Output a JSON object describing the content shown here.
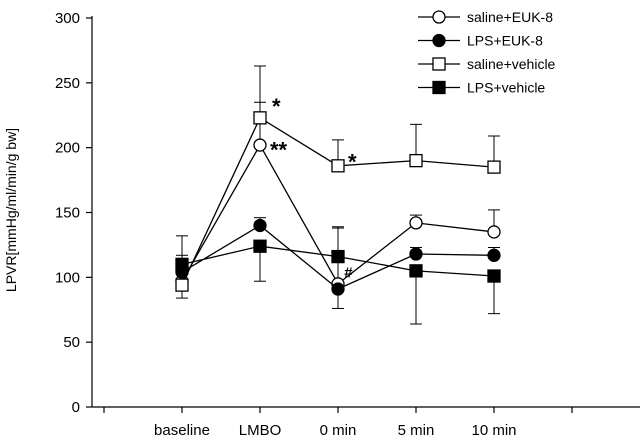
{
  "chart_data": {
    "type": "line",
    "title": "",
    "xlabel": "",
    "ylabel": "LPVR[mmHg/ml/min/g bw]",
    "ylim": [
      0,
      300
    ],
    "yticks": [
      0,
      50,
      100,
      150,
      200,
      250,
      300
    ],
    "categories": [
      "baseline",
      "LMBO",
      "0 min",
      "5 min",
      "10 min"
    ],
    "grid": false,
    "legend_position": "top-right",
    "series": [
      {
        "name": "saline+EUK-8",
        "marker": "circle-open",
        "values": [
          97,
          202,
          95,
          142,
          135
        ],
        "errors": [
          20,
          33,
          44,
          6,
          17
        ],
        "error_direction": [
          "up",
          "up",
          "up",
          "up",
          "up"
        ]
      },
      {
        "name": "LPS+EUK-8",
        "marker": "circle-filled",
        "values": [
          104,
          140,
          91,
          118,
          117
        ],
        "errors": [
          10,
          6,
          15,
          5,
          6
        ],
        "error_direction": [
          "up",
          "up",
          "down",
          "up",
          "up"
        ]
      },
      {
        "name": "saline+vehicle",
        "marker": "square-open",
        "values": [
          94,
          223,
          186,
          190,
          185
        ],
        "errors": [
          10,
          40,
          20,
          28,
          24
        ],
        "error_direction": [
          "down",
          "up",
          "up",
          "up",
          "up"
        ]
      },
      {
        "name": "LPS+vehicle",
        "marker": "square-filled",
        "values": [
          110,
          124,
          116,
          105,
          101
        ],
        "errors": [
          22,
          27,
          22,
          41,
          29
        ],
        "error_direction": [
          "up",
          "down",
          "up",
          "down",
          "down"
        ]
      }
    ],
    "annotations": [
      {
        "text": "*",
        "category": "LMBO",
        "value": 226
      },
      {
        "text": "**",
        "category": "LMBO",
        "value": 200
      },
      {
        "text": "*",
        "category": "0 min",
        "value": 183
      },
      {
        "text": "#",
        "category": "0 min",
        "value": 100
      }
    ]
  }
}
